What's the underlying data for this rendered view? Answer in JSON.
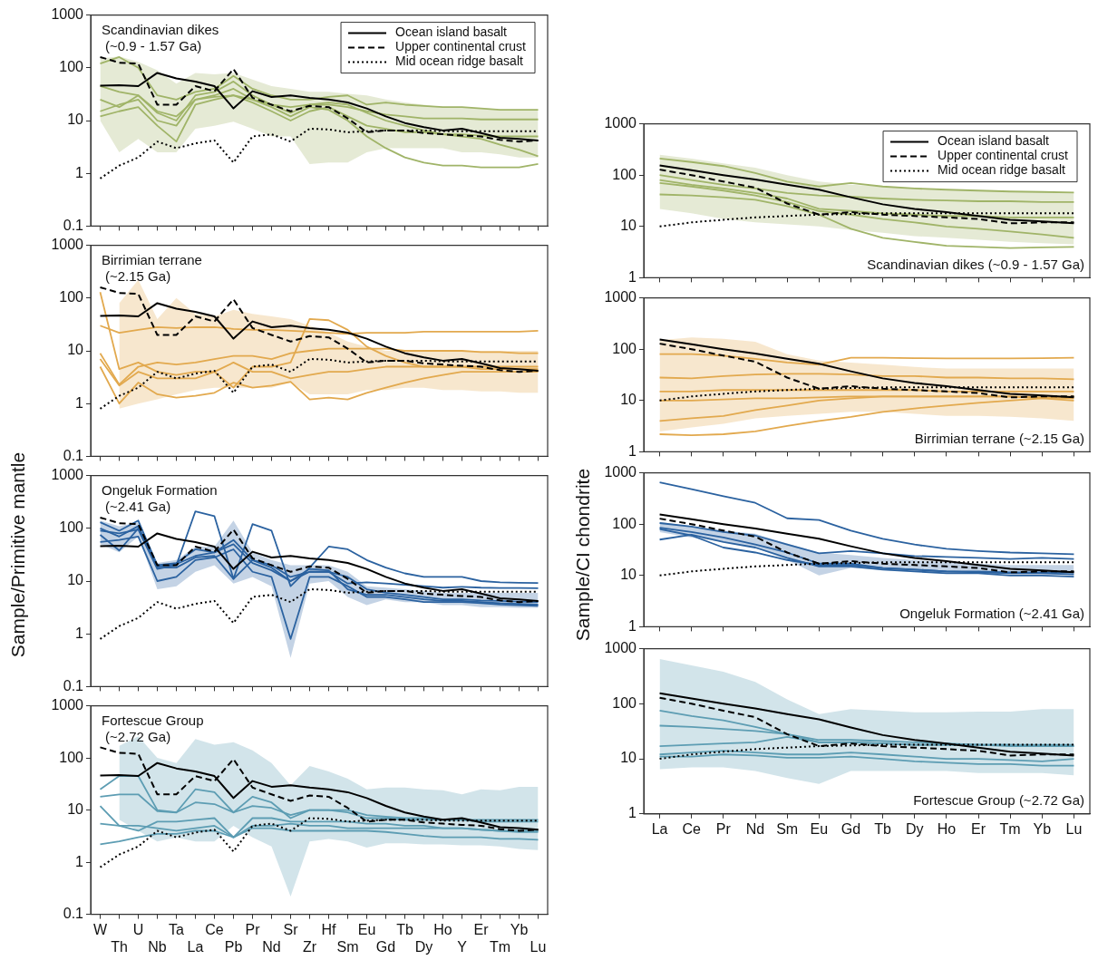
{
  "chart_data": [
    {
      "type": "line",
      "title": "Scandinavian dikes",
      "subtitle": "(~0.9 - 1.57 Ga)",
      "legend": "top right",
      "log": true,
      "tick_labels": "y",
      "ylim": [
        0.1,
        1000
      ],
      "yticks": [
        0.1,
        1,
        10,
        100,
        1000
      ],
      "categories": [
        null,
        null,
        null,
        null,
        null,
        null,
        null,
        null,
        null,
        null,
        null,
        null,
        null,
        null,
        null,
        null,
        null,
        null,
        null,
        null,
        null,
        null,
        null,
        null
      ],
      "series": [
        {
          "name": "Ocean island basalt",
          "color": "#000000",
          "line_style": "solid",
          "values": [
            46,
            47,
            45,
            80,
            63,
            55,
            45,
            17,
            36,
            28,
            30,
            27,
            25,
            22,
            17,
            12,
            9,
            7.5,
            6.5,
            7,
            5.8,
            4.7,
            4.5,
            4.2
          ]
        },
        {
          "name": "Upper continental crust",
          "color": "#000000",
          "line_style": "dashed",
          "values": [
            160,
            125,
            120,
            20,
            20,
            45,
            36,
            95,
            27,
            20,
            15,
            19,
            18,
            11,
            6,
            6.5,
            6.5,
            5.8,
            5.5,
            5.2,
            5,
            4.3,
            4,
            4.2
          ]
        },
        {
          "name": "Mid ocean ridge basalt",
          "color": "#000000",
          "line_style": "dotted",
          "values": [
            0.8,
            1.4,
            2,
            4,
            3,
            3.7,
            4.2,
            1.6,
            5,
            5.5,
            4,
            7,
            6.8,
            6,
            6.3,
            6.5,
            6.5,
            6.5,
            6.3,
            6.3,
            6.3,
            6.3,
            6.3,
            6.3
          ]
        },
        {
          "color": "#a0b468",
          "values": [
            120,
            160,
            100,
            30,
            25,
            35,
            40,
            70,
            40,
            30,
            25,
            25,
            28,
            30,
            20,
            22,
            20,
            19,
            18,
            18,
            17,
            16,
            16,
            16
          ],
          "lower": [
            10,
            2.5,
            4.5,
            2.5,
            2.5,
            7,
            8,
            9.5,
            7,
            5,
            5,
            1.5,
            1.6,
            1.6,
            2.5,
            3,
            3,
            3,
            3,
            2.5,
            2.5,
            2.3,
            2,
            2
          ],
          "upper": [
            150,
            165,
            130,
            90,
            50,
            80,
            75,
            80,
            60,
            45,
            40,
            35,
            35,
            32,
            30,
            25,
            22,
            20,
            18,
            18,
            17,
            16,
            16,
            16
          ]
        },
        {
          "color": "#a0b468",
          "values": [
            45,
            35,
            30,
            15,
            12,
            25,
            30,
            40,
            25,
            20,
            18,
            20,
            20,
            18,
            15,
            13,
            12,
            11,
            11,
            11,
            10.5,
            10.5,
            10.5,
            10.5
          ]
        },
        {
          "color": "#a0b468",
          "values": [
            12,
            15,
            18,
            8,
            4,
            20,
            25,
            30,
            22,
            15,
            10,
            15,
            18,
            12,
            8,
            7,
            6,
            6,
            5.5,
            5.5,
            5.2,
            5,
            5,
            5
          ]
        },
        {
          "color": "#a0b468",
          "values": [
            15,
            20,
            25,
            10,
            8,
            25,
            28,
            30,
            25,
            18,
            12,
            18,
            16,
            10,
            5,
            3,
            2,
            1.6,
            1.4,
            1.4,
            1.3,
            1.3,
            1.3,
            1.5
          ]
        },
        {
          "color": "#a0b468",
          "values": [
            25,
            18,
            30,
            14,
            10,
            30,
            35,
            55,
            30,
            20,
            14,
            20,
            22,
            20,
            14,
            10,
            8,
            6.5,
            5.5,
            5,
            4.5,
            3.5,
            2.8,
            2.1
          ]
        }
      ]
    },
    {
      "type": "line",
      "title": "Birrimian terrane",
      "subtitle": "(~2.15 Ga)",
      "log": true,
      "tick_labels": "y",
      "ylim": [
        0.1,
        1000
      ],
      "yticks": [
        0.1,
        1,
        10,
        100,
        1000
      ],
      "categories": [
        null,
        null,
        null,
        null,
        null,
        null,
        null,
        null,
        null,
        null,
        null,
        null,
        null,
        null,
        null,
        null,
        null,
        null,
        null,
        null,
        null,
        null,
        null,
        null
      ],
      "series": [
        {
          "color": "#000000",
          "line_style": "solid",
          "values": [
            46,
            47,
            45,
            80,
            63,
            55,
            45,
            17,
            36,
            28,
            30,
            27,
            25,
            22,
            17,
            12,
            9,
            7.5,
            6.5,
            7,
            5.8,
            4.7,
            4.5,
            4.2
          ]
        },
        {
          "color": "#000000",
          "line_style": "dashed",
          "values": [
            160,
            125,
            120,
            20,
            20,
            45,
            36,
            95,
            27,
            20,
            15,
            19,
            18,
            11,
            6,
            6.5,
            6.5,
            5.8,
            5.5,
            5.2,
            5,
            4.3,
            4,
            4.2
          ]
        },
        {
          "color": "#000000",
          "line_style": "dotted",
          "values": [
            0.8,
            1.4,
            2,
            4,
            3,
            3.7,
            4.2,
            1.6,
            5,
            5.5,
            4,
            7,
            6.8,
            6,
            6.3,
            6.5,
            6.5,
            6.5,
            6.3,
            6.3,
            6.3,
            6.3,
            6.3,
            6.3
          ]
        },
        {
          "color": "#e2a94e",
          "values": [
            30,
            22,
            25,
            28,
            27,
            28,
            28,
            26,
            25,
            25,
            24,
            23,
            22,
            21,
            22,
            22,
            22,
            23,
            23,
            23,
            23,
            23,
            23,
            24
          ],
          "lower": [
            null,
            0.8,
            1,
            1.2,
            1.5,
            1.8,
            2,
            2,
            2,
            2,
            2.5,
            1.5,
            1.5,
            1.5,
            1.8,
            1.8,
            2,
            2,
            1.8,
            1.8,
            1.7,
            1.7,
            1.6,
            1.6
          ],
          "upper": [
            null,
            80,
            220,
            40,
            100,
            50,
            45,
            60,
            50,
            45,
            40,
            30,
            22,
            15,
            12,
            10,
            10,
            10,
            10,
            10,
            10,
            10,
            10,
            10
          ]
        },
        {
          "color": "#e2a94e",
          "values": [
            9,
            2.3,
            5,
            6,
            5.5,
            6,
            7,
            8,
            8,
            7,
            9,
            10,
            11,
            11,
            11,
            11,
            10,
            10,
            10,
            10,
            9.5,
            9.5,
            9,
            9
          ]
        },
        {
          "color": "#e2a94e",
          "values": [
            7,
            2.2,
            4,
            3,
            3,
            3,
            4,
            6,
            4,
            4,
            3,
            3.5,
            4,
            4,
            4.5,
            5,
            5,
            5,
            5,
            5,
            5,
            5,
            5,
            5
          ]
        },
        {
          "color": "#e2a94e",
          "values": [
            5,
            1,
            2.5,
            1.5,
            1.3,
            1.4,
            1.6,
            2.5,
            2,
            2.2,
            2.6,
            1.2,
            1.3,
            1.2,
            1.6,
            2,
            2.5,
            3,
            3.5,
            4,
            4,
            4,
            4,
            4
          ]
        },
        {
          "color": "#e2a94e",
          "values": [
            130,
            4.5,
            6,
            4,
            3.5,
            4,
            4,
            2,
            5,
            5,
            6,
            40,
            38,
            25,
            12,
            8,
            6,
            5,
            5,
            5,
            4.5,
            4.5,
            4.5,
            4.5
          ]
        }
      ]
    },
    {
      "type": "line",
      "title": "Ongeluk Formation",
      "subtitle": "(~2.41 Ga)",
      "ylabel": "Sample/Primitive mantle",
      "log": true,
      "tick_labels": "y",
      "ylim": [
        0.1,
        1000
      ],
      "yticks": [
        0.1,
        1,
        10,
        100,
        1000
      ],
      "categories": [
        null,
        null,
        null,
        null,
        null,
        null,
        null,
        null,
        null,
        null,
        null,
        null,
        null,
        null,
        null,
        null,
        null,
        null,
        null,
        null,
        null,
        null,
        null,
        null
      ],
      "series": [
        {
          "color": "#000000",
          "line_style": "solid",
          "values": [
            46,
            47,
            45,
            80,
            63,
            55,
            45,
            17,
            36,
            28,
            30,
            27,
            25,
            22,
            17,
            12,
            9,
            7.5,
            6.5,
            7,
            5.8,
            4.7,
            4.5,
            4.2
          ]
        },
        {
          "color": "#000000",
          "line_style": "dashed",
          "values": [
            160,
            125,
            120,
            20,
            20,
            45,
            36,
            95,
            27,
            20,
            15,
            19,
            18,
            11,
            6,
            6.5,
            6.5,
            5.8,
            5.5,
            5.2,
            5,
            4.3,
            4,
            4.2
          ]
        },
        {
          "color": "#000000",
          "line_style": "dotted",
          "values": [
            0.8,
            1.4,
            2,
            4,
            3,
            3.7,
            4.2,
            1.6,
            5,
            5.5,
            4,
            7,
            6.8,
            6,
            6.3,
            6.5,
            6.5,
            6.5,
            6.3,
            6.3,
            6.3,
            6.3,
            6.3,
            6.3
          ]
        },
        {
          "color": "#2b62a0",
          "values": [
            130,
            90,
            140,
            20,
            22,
            40,
            35,
            60,
            25,
            20,
            12,
            15,
            15,
            12,
            7,
            6,
            5.5,
            5,
            4.5,
            4.5,
            4.3,
            4.2,
            4.1,
            4
          ],
          "lower": [
            50,
            35,
            70,
            7,
            8,
            15,
            20,
            9,
            12,
            8,
            0.35,
            9,
            10,
            5,
            3.5,
            4.5,
            4,
            4,
            3.5,
            3.5,
            3.2,
            3.2,
            3.1,
            3.1
          ],
          "upper": [
            140,
            110,
            130,
            22,
            25,
            45,
            45,
            140,
            35,
            25,
            20,
            20,
            20,
            15,
            8,
            7.5,
            7,
            6.5,
            6,
            6,
            6,
            6,
            6,
            6
          ]
        },
        {
          "color": "#2b62a0",
          "values": [
            55,
            60,
            70,
            10,
            12,
            25,
            28,
            40,
            15,
            12,
            0.8,
            12,
            12,
            8,
            5,
            5,
            4.5,
            4,
            4,
            4,
            3.8,
            3.6,
            3.5,
            3.4
          ]
        },
        {
          "color": "#2b62a0",
          "values": [
            75,
            38,
            100,
            18,
            18,
            28,
            30,
            11,
            25,
            18,
            10,
            17,
            16,
            7,
            5.5,
            5.5,
            5,
            4.5,
            4.2,
            4.2,
            4,
            3.8,
            3.7,
            3.6
          ]
        },
        {
          "color": "#2b62a0",
          "values": [
            90,
            80,
            95,
            17,
            20,
            210,
            170,
            11,
            120,
            90,
            8,
            18,
            45,
            40,
            25,
            18,
            14,
            12,
            12,
            12,
            10,
            9.5,
            9.3,
            9.2
          ]
        },
        {
          "color": "#2b62a0",
          "values": [
            100,
            70,
            110,
            19,
            21,
            30,
            35,
            50,
            22,
            16,
            10,
            15,
            15,
            9,
            9.5,
            9,
            8.5,
            8,
            7.5,
            7.8,
            7.5,
            7.4,
            7.4,
            7.3
          ]
        }
      ]
    },
    {
      "type": "line",
      "title": "Fortescue Group",
      "subtitle": "(~2.72 Ga)",
      "log": true,
      "ylim": [
        0.1,
        1000
      ],
      "yticks": [
        0.1,
        1,
        10,
        100,
        1000
      ],
      "categories": [
        "W",
        "Th",
        "U",
        "Nb",
        "Ta",
        "La",
        "Ce",
        "Pb",
        "Pr",
        "Nd",
        "Sr",
        "Zr",
        "Hf",
        "Sm",
        "Eu",
        "Gd",
        "Tb",
        "Dy",
        "Ho",
        "Y",
        "Er",
        "Tm",
        "Yb",
        "Lu"
      ],
      "series": [
        {
          "color": "#000000",
          "line_style": "solid",
          "values": [
            46,
            47,
            45,
            80,
            63,
            55,
            45,
            17,
            36,
            28,
            30,
            27,
            25,
            22,
            17,
            12,
            9,
            7.5,
            6.5,
            7,
            5.8,
            4.7,
            4.5,
            4.2
          ]
        },
        {
          "color": "#000000",
          "line_style": "dashed",
          "values": [
            160,
            125,
            120,
            20,
            20,
            45,
            36,
            95,
            27,
            20,
            15,
            19,
            18,
            11,
            6,
            6.5,
            6.5,
            5.8,
            5.5,
            5.2,
            5,
            4.3,
            4,
            4.2
          ]
        },
        {
          "color": "#000000",
          "line_style": "dotted",
          "values": [
            0.8,
            1.4,
            2,
            4,
            3,
            3.7,
            4.2,
            1.6,
            5,
            5.5,
            4,
            7,
            6.8,
            6,
            6.3,
            6.5,
            6.5,
            6.5,
            6.3,
            6.3,
            6.3,
            6.3,
            6.3,
            6.3
          ]
        },
        {
          "color": "#5d9db3",
          "values": [
            25,
            45,
            45,
            10,
            9,
            25,
            22,
            9,
            18,
            14,
            7,
            10,
            10,
            10,
            8,
            7.5,
            7,
            7,
            6.5,
            6.5,
            6.5,
            6.5,
            6.5,
            6.5
          ],
          "lower": [
            null,
            6.5,
            4,
            2.5,
            3,
            2.5,
            2.5,
            5,
            3,
            2,
            0.22,
            2.5,
            2.8,
            2.5,
            1.9,
            2.3,
            2.3,
            2.2,
            2.2,
            2.1,
            2.1,
            2,
            1.8,
            1.7
          ],
          "upper": [
            null,
            170,
            260,
            100,
            80,
            230,
            180,
            200,
            140,
            80,
            30,
            70,
            55,
            40,
            25,
            27,
            27,
            25,
            24,
            20,
            25,
            24,
            28,
            28
          ]
        },
        {
          "color": "#5d9db3",
          "values": [
            18,
            20,
            20,
            9.5,
            9,
            14,
            13,
            9,
            12,
            11,
            8,
            10,
            10,
            9,
            7,
            7,
            6.5,
            6.5,
            6.5,
            6.5,
            6,
            6,
            6,
            6
          ]
        },
        {
          "color": "#5d9db3",
          "values": [
            5.5,
            5,
            5,
            4.5,
            4,
            4.5,
            5,
            3,
            5,
            5,
            5.5,
            5,
            5,
            4.5,
            4.5,
            4.5,
            4.5,
            4.5,
            4.5,
            4.5,
            4.2,
            4,
            4,
            4
          ]
        },
        {
          "color": "#5d9db3",
          "values": [
            2.2,
            2.5,
            3,
            3.5,
            3.5,
            4,
            4,
            3,
            4.5,
            4.5,
            4,
            4,
            4,
            4,
            4,
            3.8,
            3.5,
            3.2,
            3,
            3,
            3,
            2.8,
            2.8,
            2.7
          ]
        },
        {
          "color": "#5d9db3",
          "values": [
            12,
            5,
            4,
            6,
            6,
            6.5,
            7,
            3,
            7,
            7,
            6,
            6,
            6,
            6,
            5.5,
            5.5,
            5,
            5,
            4.5,
            4.5,
            4.2,
            4,
            3.8,
            3.8
          ]
        }
      ]
    },
    {
      "type": "line",
      "title": "Scandinavian dikes",
      "subtitle": "(~0.9 - 1.57 Ga)",
      "legend": "top right",
      "log": true,
      "tick_labels": "y",
      "ylim": [
        1,
        1000
      ],
      "yticks": [
        1,
        10,
        100,
        1000
      ],
      "categories": [
        null,
        null,
        null,
        null,
        null,
        null,
        null,
        null,
        null,
        null,
        null,
        null,
        null,
        null
      ],
      "series": [
        {
          "name": "Ocean island basalt",
          "color": "#000000",
          "line_style": "solid",
          "values": [
            155,
            125,
            100,
            82,
            65,
            52,
            37,
            27,
            22,
            19,
            16,
            13.5,
            12.5,
            11.5
          ]
        },
        {
          "name": "Upper continental crust",
          "color": "#000000",
          "line_style": "dashed",
          "values": [
            128,
            100,
            75,
            57,
            28,
            17,
            19,
            17,
            16,
            15,
            14,
            11.5,
            12,
            12
          ]
        },
        {
          "name": "Mid ocean ridge basalt",
          "color": "#000000",
          "line_style": "dotted",
          "values": [
            10,
            12,
            13.5,
            15,
            16,
            17,
            17.5,
            18,
            18,
            18,
            18,
            18,
            18,
            18
          ]
        },
        {
          "color": "#a0b468",
          "values": [
            210,
            180,
            150,
            110,
            75,
            60,
            70,
            60,
            55,
            52,
            50,
            48,
            47,
            46
          ],
          "lower": [
            22,
            18,
            14,
            12,
            11,
            10,
            8.5,
            7.5,
            6.5,
            6,
            5.5,
            5,
            4.7,
            4.5
          ],
          "upper": [
            250,
            210,
            170,
            140,
            100,
            75,
            65,
            60,
            55,
            50,
            50,
            48,
            47,
            45
          ]
        },
        {
          "color": "#a0b468",
          "values": [
            100,
            80,
            65,
            55,
            45,
            40,
            38,
            35,
            33,
            32,
            31,
            31,
            30,
            30
          ]
        },
        {
          "color": "#a0b468",
          "values": [
            80,
            65,
            55,
            45,
            35,
            22,
            20,
            18,
            17,
            16,
            16,
            15,
            15,
            15
          ]
        },
        {
          "color": "#a0b468",
          "values": [
            42,
            40,
            37,
            33,
            25,
            17,
            9,
            6,
            5,
            4.2,
            4,
            3.8,
            3.9,
            4
          ]
        },
        {
          "color": "#a0b468",
          "values": [
            70,
            60,
            50,
            40,
            30,
            20,
            17,
            14,
            12,
            10,
            9,
            8,
            7,
            6
          ]
        }
      ]
    },
    {
      "type": "line",
      "title": "Birrimian terrane",
      "subtitle": "(~2.15 Ga)",
      "log": true,
      "tick_labels": "y",
      "ylim": [
        1,
        1000
      ],
      "yticks": [
        1,
        10,
        100,
        1000
      ],
      "categories": [
        null,
        null,
        null,
        null,
        null,
        null,
        null,
        null,
        null,
        null,
        null,
        null,
        null,
        null
      ],
      "series": [
        {
          "color": "#000000",
          "line_style": "solid",
          "values": [
            155,
            125,
            100,
            82,
            65,
            52,
            37,
            27,
            22,
            19,
            16,
            13.5,
            12.5,
            11.5
          ]
        },
        {
          "color": "#000000",
          "line_style": "dashed",
          "values": [
            128,
            100,
            75,
            57,
            28,
            17,
            19,
            17,
            16,
            15,
            14,
            11.5,
            12,
            12
          ]
        },
        {
          "color": "#000000",
          "line_style": "dotted",
          "values": [
            10,
            12,
            13.5,
            15,
            16,
            17,
            17.5,
            18,
            18,
            18,
            18,
            18,
            18,
            18
          ]
        },
        {
          "color": "#e2a94e",
          "values": [
            80,
            80,
            75,
            65,
            55,
            50,
            68,
            68,
            67,
            66,
            66,
            66,
            67,
            68
          ],
          "lower": [
            2.5,
            3,
            3.5,
            4.5,
            5,
            5.5,
            6,
            6,
            5.5,
            5,
            5,
            4.8,
            4.5,
            4
          ],
          "upper": [
            150,
            170,
            160,
            140,
            80,
            60,
            55,
            50,
            45,
            42,
            42,
            42,
            42,
            42
          ]
        },
        {
          "color": "#e2a94e",
          "values": [
            28,
            27,
            30,
            32,
            33,
            33,
            32,
            30,
            30,
            28,
            28,
            27,
            27,
            26
          ]
        },
        {
          "color": "#e2a94e",
          "values": [
            15,
            15,
            16,
            16,
            16,
            16,
            16,
            16,
            16,
            15,
            15,
            15,
            15,
            15
          ]
        },
        {
          "color": "#e2a94e",
          "values": [
            10,
            10,
            10.5,
            11,
            11,
            11.5,
            12,
            12,
            12,
            12,
            12,
            12,
            11.5,
            11
          ]
        },
        {
          "color": "#e2a94e",
          "values": [
            4,
            4.5,
            5,
            6.5,
            8,
            10,
            11,
            12,
            12,
            12,
            12,
            12,
            11,
            10
          ]
        },
        {
          "color": "#e2a94e",
          "values": [
            2.2,
            2.1,
            2.2,
            2.5,
            3.2,
            4,
            4.8,
            6,
            7,
            8,
            9,
            10,
            11,
            12
          ]
        }
      ]
    },
    {
      "type": "line",
      "title": "Ongeluk Formation",
      "subtitle": "(~2.41 Ga)",
      "ylabel": "Sample/CI chondrite",
      "log": true,
      "tick_labels": "y",
      "ylim": [
        1,
        1000
      ],
      "yticks": [
        1,
        10,
        100,
        1000
      ],
      "categories": [
        null,
        null,
        null,
        null,
        null,
        null,
        null,
        null,
        null,
        null,
        null,
        null,
        null,
        null
      ],
      "series": [
        {
          "color": "#000000",
          "line_style": "solid",
          "values": [
            155,
            125,
            100,
            82,
            65,
            52,
            37,
            27,
            22,
            19,
            16,
            13.5,
            12.5,
            11.5
          ]
        },
        {
          "color": "#000000",
          "line_style": "dashed",
          "values": [
            128,
            100,
            75,
            57,
            28,
            17,
            19,
            17,
            16,
            15,
            14,
            11.5,
            12,
            12
          ]
        },
        {
          "color": "#000000",
          "line_style": "dotted",
          "values": [
            10,
            12,
            13.5,
            15,
            16,
            17,
            17.5,
            18,
            18,
            18,
            18,
            18,
            18,
            18
          ]
        },
        {
          "color": "#2b62a0",
          "values": [
            650,
            480,
            350,
            260,
            130,
            120,
            75,
            52,
            40,
            33,
            30,
            28,
            27,
            26
          ],
          "lower": [
            70,
            55,
            45,
            35,
            20,
            10,
            14,
            13,
            12,
            11,
            11,
            10.5,
            10.5,
            10.5
          ],
          "upper": [
            110,
            90,
            75,
            65,
            42,
            28,
            25,
            22,
            20,
            18,
            17,
            16,
            16,
            16
          ]
        },
        {
          "color": "#2b62a0",
          "values": [
            105,
            90,
            70,
            60,
            40,
            27,
            30,
            27,
            24,
            23,
            22,
            21,
            22,
            21
          ]
        },
        {
          "color": "#2b62a0",
          "values": [
            85,
            70,
            55,
            40,
            28,
            17,
            17,
            14,
            13,
            12,
            12,
            11.5,
            11.5,
            11.5
          ]
        },
        {
          "color": "#2b62a0",
          "values": [
            50,
            62,
            45,
            35,
            22,
            15,
            15,
            13,
            12,
            11,
            11,
            10,
            10,
            9.5
          ]
        },
        {
          "color": "#2b62a0",
          "values": [
            80,
            60,
            35,
            28,
            20,
            16,
            16,
            14,
            13,
            12,
            11.5,
            11,
            11,
            10.5
          ]
        }
      ]
    },
    {
      "type": "line",
      "title": "Fortescue Group",
      "subtitle": "(~2.72 Ga)",
      "log": true,
      "ylim": [
        1,
        1000
      ],
      "yticks": [
        1,
        10,
        100,
        1000
      ],
      "categories": [
        "La",
        "Ce",
        "Pr",
        "Nd",
        "Sm",
        "Eu",
        "Gd",
        "Tb",
        "Dy",
        "Ho",
        "Er",
        "Tm",
        "Yb",
        "Lu"
      ],
      "series": [
        {
          "color": "#000000",
          "line_style": "solid",
          "values": [
            155,
            125,
            100,
            82,
            65,
            52,
            37,
            27,
            22,
            19,
            16,
            13.5,
            12.5,
            11.5
          ]
        },
        {
          "color": "#000000",
          "line_style": "dashed",
          "values": [
            128,
            100,
            75,
            57,
            28,
            17,
            19,
            17,
            16,
            15,
            14,
            11.5,
            12,
            12
          ]
        },
        {
          "color": "#000000",
          "line_style": "dotted",
          "values": [
            10,
            12,
            13.5,
            15,
            16,
            17,
            17.5,
            18,
            18,
            18,
            18,
            18,
            18,
            18
          ]
        },
        {
          "color": "#5d9db3",
          "values": [
            75,
            60,
            50,
            38,
            28,
            20,
            20,
            19,
            18,
            18,
            18,
            17,
            17,
            17
          ],
          "lower": [
            6.5,
            7,
            7,
            6,
            4.5,
            3.5,
            6,
            6,
            6,
            6,
            5.5,
            5.5,
            5.5,
            5
          ],
          "upper": [
            650,
            500,
            380,
            250,
            120,
            65,
            80,
            75,
            70,
            70,
            72,
            72,
            80,
            80
          ]
        },
        {
          "color": "#5d9db3",
          "values": [
            40,
            38,
            35,
            32,
            28,
            22,
            22,
            21,
            20,
            19,
            18,
            18,
            18,
            18
          ]
        },
        {
          "color": "#5d9db3",
          "values": [
            17,
            18,
            19,
            20,
            25,
            20,
            20,
            19,
            18,
            18,
            18,
            18,
            17,
            17
          ]
        },
        {
          "color": "#5d9db3",
          "values": [
            12,
            13,
            14,
            13,
            12,
            12,
            13,
            12,
            11,
            10,
            10,
            9.5,
            9,
            10
          ]
        },
        {
          "color": "#5d9db3",
          "values": [
            11,
            11,
            12,
            11.5,
            10.5,
            10.5,
            11,
            10,
            9,
            8.5,
            8,
            8,
            7.5,
            7.5
          ]
        }
      ]
    }
  ]
}
